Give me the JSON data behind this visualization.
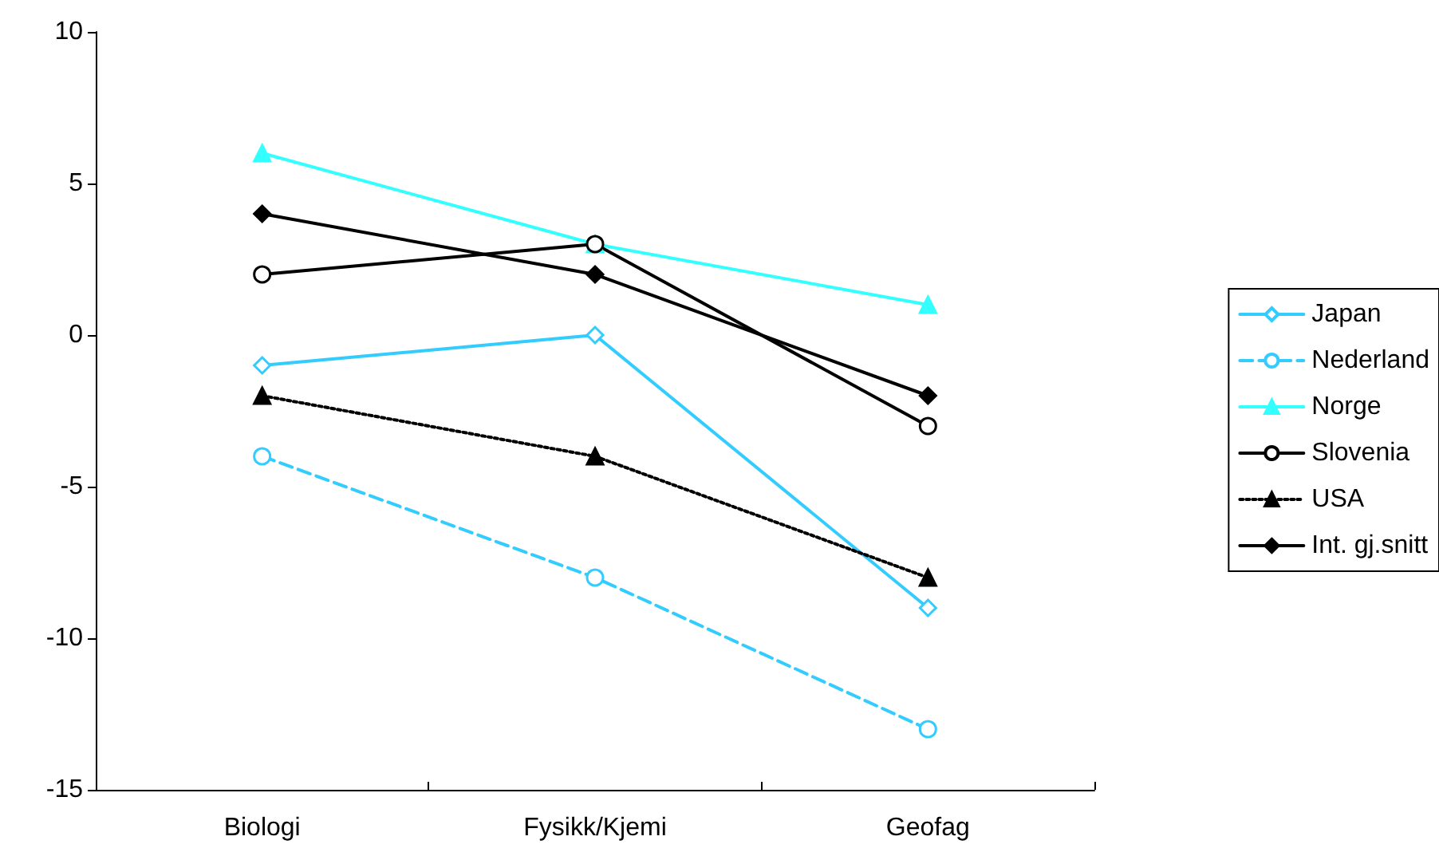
{
  "chart_data": {
    "type": "line",
    "categories": [
      "Biologi",
      "Fysikk/Kjemi",
      "Geofag"
    ],
    "series": [
      {
        "name": "Japan",
        "color": "#33ccff",
        "values": [
          -1,
          0,
          -9
        ],
        "marker": "diamond",
        "line_style": "solid"
      },
      {
        "name": "Nederland",
        "color": "#33ccff",
        "values": [
          -4,
          -8,
          -13
        ],
        "marker": "circle",
        "line_style": "dashed"
      },
      {
        "name": "Norge",
        "color": "#33ffff",
        "values": [
          6,
          3,
          1
        ],
        "marker": "triangle",
        "line_style": "solid"
      },
      {
        "name": "Slovenia",
        "color": "#000000",
        "values": [
          2,
          3,
          -3
        ],
        "marker": "circle",
        "line_style": "solid"
      },
      {
        "name": "USA",
        "color": "#000000",
        "values": [
          -2,
          -4,
          -8
        ],
        "marker": "triangle",
        "line_style": "dotted"
      },
      {
        "name": "Int. gj.snitt",
        "color": "#000000",
        "values": [
          4,
          2,
          -2
        ],
        "marker": "diamond",
        "line_style": "solid"
      }
    ],
    "ylim": [
      -15,
      10
    ],
    "yticks": [
      -15,
      -10,
      -5,
      0,
      5,
      10
    ],
    "grid": false,
    "legend": "right"
  }
}
